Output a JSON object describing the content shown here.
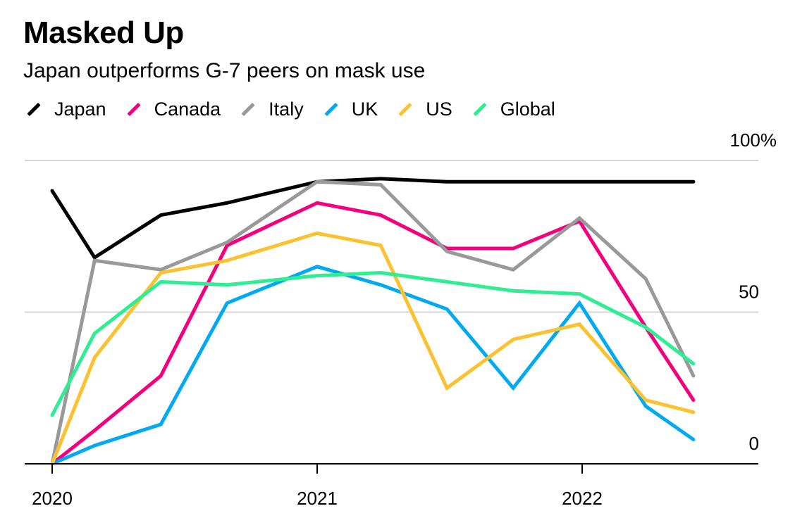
{
  "title": "Masked Up",
  "subtitle": "Japan outperforms G-7 peers on mask use",
  "chart_data": {
    "type": "line",
    "title": "Masked Up",
    "subtitle": "Japan outperforms G-7 peers on mask use",
    "xlabel": "",
    "ylabel": "",
    "ylim": [
      0,
      100
    ],
    "xlim": [
      2020.0,
      2022.65
    ],
    "y_ticks": [
      {
        "value": 100,
        "label": "100%"
      },
      {
        "value": 50,
        "label": "50"
      },
      {
        "value": 0,
        "label": "0"
      }
    ],
    "x_ticks": [
      {
        "value": 2020,
        "label": "2020"
      },
      {
        "value": 2021,
        "label": "2021"
      },
      {
        "value": 2022,
        "label": "2022"
      }
    ],
    "grid": true,
    "y_axis_position": "right",
    "legend_position": "top-left",
    "x": [
      2020.0,
      2020.16,
      2020.41,
      2020.66,
      2020.91,
      2021.24,
      2021.49,
      2021.74,
      2021.99,
      2022.24,
      2022.42
    ],
    "series": [
      {
        "name": "Japan",
        "color": "#000000",
        "x": [
          2020.0,
          2020.16,
          2020.41,
          2020.66,
          2021.0,
          2021.24,
          2021.49,
          2021.74,
          2021.99,
          2022.24,
          2022.42
        ],
        "values": [
          90,
          68,
          82,
          86,
          93,
          94,
          93,
          93,
          93,
          93,
          93
        ]
      },
      {
        "name": "Canada",
        "color": "#f2007e",
        "x": [
          2020.0,
          2020.16,
          2020.41,
          2020.66,
          2021.0,
          2021.24,
          2021.49,
          2021.74,
          2021.99,
          2022.24,
          2022.42
        ],
        "values": [
          0,
          11,
          29,
          72,
          86,
          82,
          71,
          71,
          80,
          45,
          21
        ]
      },
      {
        "name": "Italy",
        "color": "#999999",
        "x": [
          2020.0,
          2020.16,
          2020.41,
          2020.66,
          2021.0,
          2021.24,
          2021.49,
          2021.74,
          2021.99,
          2022.24,
          2022.42
        ],
        "values": [
          0,
          67,
          64,
          73,
          93,
          92,
          70,
          64,
          81,
          61,
          29
        ]
      },
      {
        "name": "UK",
        "color": "#00aaf2",
        "x": [
          2020.0,
          2020.16,
          2020.41,
          2020.66,
          2021.0,
          2021.24,
          2021.49,
          2021.74,
          2021.99,
          2022.24,
          2022.42
        ],
        "values": [
          0,
          6,
          13,
          53,
          65,
          59,
          51,
          25,
          53,
          19,
          8
        ]
      },
      {
        "name": "US",
        "color": "#fcc12e",
        "x": [
          2020.0,
          2020.16,
          2020.41,
          2020.66,
          2021.0,
          2021.24,
          2021.49,
          2021.74,
          2021.99,
          2022.24,
          2022.42
        ],
        "values": [
          0,
          35,
          63,
          67,
          76,
          72,
          25,
          41,
          46,
          21,
          17
        ]
      },
      {
        "name": "Global",
        "color": "#2fed92",
        "x": [
          2020.0,
          2020.16,
          2020.41,
          2020.66,
          2021.0,
          2021.24,
          2021.49,
          2021.74,
          2021.99,
          2022.24,
          2022.42
        ],
        "values": [
          16,
          43,
          60,
          59,
          62,
          63,
          60,
          57,
          56,
          45,
          33
        ]
      }
    ]
  }
}
